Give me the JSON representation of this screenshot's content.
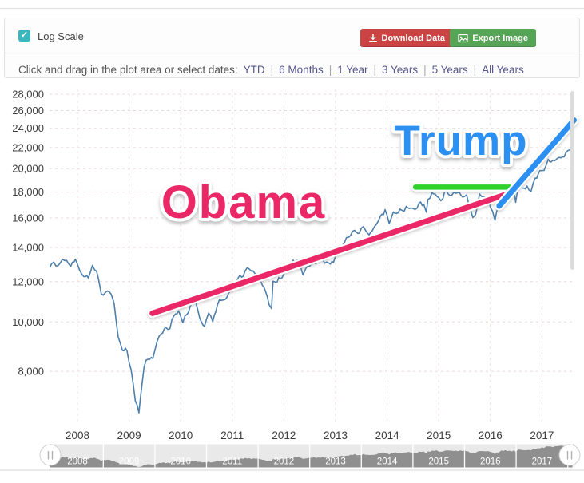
{
  "header": {
    "log_scale_label": "Log Scale",
    "log_scale_checked": true,
    "download_button": "Download Data",
    "export_button": "Export Image",
    "instruction": "Click and drag in the plot area or select dates:",
    "range_links": [
      "YTD",
      "6 Months",
      "1 Year",
      "3 Years",
      "5 Years",
      "All Years"
    ],
    "link_separator": "|"
  },
  "colors": {
    "checkbox_bg": "#3ab7be",
    "download_button_bg": "#cb4342",
    "export_button_bg": "#56a556",
    "link": "#56568e",
    "axis_text": "#3c3c3c",
    "grid": "#e8d9d9",
    "navigator_area": "#8f8f8f",
    "navigator_track": "#e9e9e9"
  },
  "chart_data": {
    "type": "line",
    "log_scale": true,
    "x_range": [
      2007.46,
      2017.62
    ],
    "y_range": [
      6330,
      28620
    ],
    "x_ticks": [
      2008,
      2009,
      2010,
      2011,
      2012,
      2013,
      2014,
      2015,
      2016,
      2017
    ],
    "y_ticks": [
      8000,
      10000,
      12000,
      14000,
      16000,
      18000,
      20000,
      22000,
      24000,
      26000,
      28000
    ],
    "grid": true,
    "series": [
      {
        "color": "#4e7fab",
        "points": [
          [
            2007.46,
            12800
          ],
          [
            2007.54,
            13100
          ],
          [
            2007.62,
            12850
          ],
          [
            2007.71,
            13300
          ],
          [
            2007.79,
            13150
          ],
          [
            2007.87,
            12900
          ],
          [
            2007.96,
            13265
          ],
          [
            2008.04,
            12650
          ],
          [
            2008.12,
            12266
          ],
          [
            2008.21,
            12263
          ],
          [
            2008.29,
            12820
          ],
          [
            2008.37,
            12638
          ],
          [
            2008.46,
            11350
          ],
          [
            2008.54,
            11378
          ],
          [
            2008.62,
            11544
          ],
          [
            2008.71,
            10851
          ],
          [
            2008.79,
            9325
          ],
          [
            2008.87,
            8829
          ],
          [
            2008.96,
            8776
          ],
          [
            2009.04,
            8001
          ],
          [
            2009.12,
            7063
          ],
          [
            2009.19,
            6626
          ],
          [
            2009.25,
            7609
          ],
          [
            2009.29,
            8168
          ],
          [
            2009.37,
            8500
          ],
          [
            2009.46,
            8447
          ],
          [
            2009.54,
            9172
          ],
          [
            2009.62,
            9496
          ],
          [
            2009.71,
            9712
          ],
          [
            2009.79,
            9713
          ],
          [
            2009.87,
            10345
          ],
          [
            2009.96,
            10428
          ],
          [
            2010.04,
            10067
          ],
          [
            2010.12,
            10325
          ],
          [
            2010.21,
            10857
          ],
          [
            2010.29,
            11009
          ],
          [
            2010.37,
            10137
          ],
          [
            2010.46,
            9774
          ],
          [
            2010.54,
            10466
          ],
          [
            2010.62,
            10015
          ],
          [
            2010.71,
            10788
          ],
          [
            2010.79,
            11118
          ],
          [
            2010.87,
            11006
          ],
          [
            2010.96,
            11578
          ],
          [
            2011.04,
            11892
          ],
          [
            2011.12,
            12226
          ],
          [
            2011.21,
            12320
          ],
          [
            2011.29,
            12811
          ],
          [
            2011.37,
            12570
          ],
          [
            2011.46,
            12414
          ],
          [
            2011.54,
            12143
          ],
          [
            2011.62,
            11614
          ],
          [
            2011.71,
            10913
          ],
          [
            2011.76,
            10655
          ],
          [
            2011.79,
            11955
          ],
          [
            2011.87,
            12046
          ],
          [
            2011.96,
            12218
          ],
          [
            2012.04,
            12633
          ],
          [
            2012.12,
            12952
          ],
          [
            2012.21,
            13212
          ],
          [
            2012.29,
            13214
          ],
          [
            2012.37,
            12393
          ],
          [
            2012.46,
            12880
          ],
          [
            2012.54,
            13009
          ],
          [
            2012.62,
            13091
          ],
          [
            2012.71,
            13437
          ],
          [
            2012.79,
            13096
          ],
          [
            2012.87,
            13026
          ],
          [
            2012.96,
            13104
          ],
          [
            2013.04,
            13861
          ],
          [
            2013.12,
            14054
          ],
          [
            2013.21,
            14579
          ],
          [
            2013.29,
            14840
          ],
          [
            2013.37,
            15116
          ],
          [
            2013.46,
            14910
          ],
          [
            2013.54,
            15500
          ],
          [
            2013.62,
            14810
          ],
          [
            2013.71,
            15130
          ],
          [
            2013.79,
            15546
          ],
          [
            2013.87,
            16086
          ],
          [
            2013.96,
            16577
          ],
          [
            2014.04,
            15699
          ],
          [
            2014.12,
            16322
          ],
          [
            2014.21,
            16458
          ],
          [
            2014.29,
            16581
          ],
          [
            2014.37,
            16717
          ],
          [
            2014.46,
            16827
          ],
          [
            2014.54,
            16563
          ],
          [
            2014.62,
            17098
          ],
          [
            2014.71,
            17043
          ],
          [
            2014.76,
            16320
          ],
          [
            2014.79,
            17391
          ],
          [
            2014.87,
            17828
          ],
          [
            2014.96,
            17823
          ],
          [
            2015.04,
            17165
          ],
          [
            2015.12,
            18133
          ],
          [
            2015.21,
            17776
          ],
          [
            2015.29,
            17841
          ],
          [
            2015.37,
            18011
          ],
          [
            2015.46,
            17620
          ],
          [
            2015.54,
            17690
          ],
          [
            2015.62,
            16528
          ],
          [
            2015.66,
            15990
          ],
          [
            2015.71,
            16285
          ],
          [
            2015.79,
            17664
          ],
          [
            2015.87,
            17720
          ],
          [
            2015.96,
            17425
          ],
          [
            2016.04,
            16466
          ],
          [
            2016.09,
            15760
          ],
          [
            2016.12,
            16517
          ],
          [
            2016.21,
            17685
          ],
          [
            2016.29,
            17774
          ],
          [
            2016.37,
            17787
          ],
          [
            2016.46,
            17930
          ],
          [
            2016.49,
            17140
          ],
          [
            2016.54,
            18432
          ],
          [
            2016.62,
            18401
          ],
          [
            2016.71,
            18308
          ],
          [
            2016.79,
            18142
          ],
          [
            2016.87,
            19124
          ],
          [
            2016.96,
            19763
          ],
          [
            2017.04,
            19864
          ],
          [
            2017.12,
            20812
          ],
          [
            2017.21,
            20663
          ],
          [
            2017.29,
            20941
          ],
          [
            2017.37,
            21009
          ],
          [
            2017.46,
            21350
          ],
          [
            2017.54,
            21891
          ],
          [
            2017.62,
            21950
          ]
        ]
      }
    ],
    "navigator": {
      "years": [
        2008,
        2009,
        2010,
        2011,
        2012,
        2013,
        2014,
        2015,
        2016,
        2017
      ],
      "vmin": 6500,
      "vmax": 22300
    },
    "annotations": {
      "obama": {
        "text": "Obama",
        "color": "#ea2767",
        "label_at": [
          2011.22,
          17250
        ],
        "line": [
          [
            2009.45,
            10400
          ],
          [
            2016.3,
            17800
          ]
        ]
      },
      "trump": {
        "text": "Trump",
        "color": "#2b90f2",
        "label_at": [
          2015.43,
          22800
        ],
        "line": [
          [
            2016.17,
            16900
          ],
          [
            2017.62,
            24900
          ]
        ]
      },
      "plateau": {
        "color": "#2fd32a",
        "line": [
          [
            2014.55,
            18400
          ],
          [
            2016.38,
            18400
          ]
        ]
      }
    }
  }
}
